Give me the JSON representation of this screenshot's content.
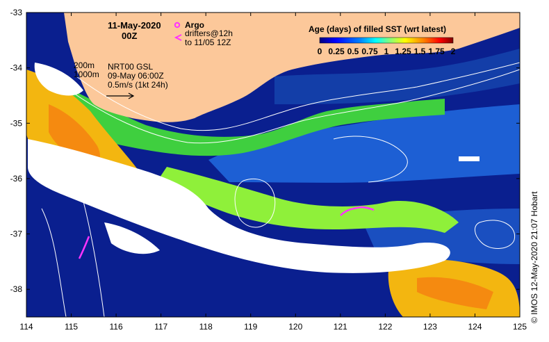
{
  "header": {
    "date": "11-May-2020",
    "time": "00Z"
  },
  "legend_markers": {
    "argo_label": "Argo",
    "drifters_label": "drifters@12h",
    "drifters_range": "to 11/05 12Z",
    "argo_color": "#ff33ff",
    "drifter_color": "#ff33ff"
  },
  "notes": {
    "isobath_200": "200m",
    "isobath_1000": "1000m",
    "model_name": "NRT00 GSL",
    "model_time": "09-May 06:00Z",
    "vector_scale": "0.5m/s (1kt 24h)"
  },
  "colorbar": {
    "title": "Age (days) of filled SST (wrt latest)",
    "tick_labels": [
      "0",
      "0.25",
      "0.5",
      "0.75",
      "1",
      "1.25",
      "1.5",
      "1.75",
      "2"
    ],
    "colors": [
      "#00007f",
      "#0000ff",
      "#0080ff",
      "#00ffff",
      "#80ff80",
      "#ffff00",
      "#ff8000",
      "#ff0000",
      "#7f0000"
    ]
  },
  "axes": {
    "x_ticks": [
      "114",
      "115",
      "116",
      "117",
      "118",
      "119",
      "120",
      "121",
      "122",
      "123",
      "124",
      "125"
    ],
    "y_ticks": [
      "-33",
      "-34",
      "-35",
      "-36",
      "-37",
      "-38"
    ],
    "x_range": [
      114,
      125
    ],
    "y_range": [
      -38.5,
      -33
    ]
  },
  "credit": "© IMOS 12-May-2020 21:07 Hobart",
  "colors": {
    "land": "#fcc89a",
    "ocean_deep": "#0a1f8f",
    "ocean_mid": "#1d5fd4",
    "green": "#3fcf3f",
    "lime": "#9ff23a",
    "yellow": "#f3b610",
    "cloud": "#ffffff"
  }
}
